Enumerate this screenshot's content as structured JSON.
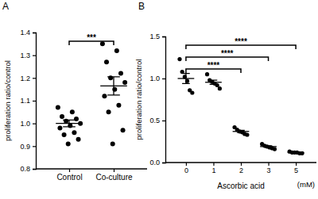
{
  "chart_data": [
    {
      "type": "scatter",
      "title": "A",
      "ylabel": "proliferation ratio/control",
      "categories": [
        "Control",
        "Co-culture"
      ],
      "values": [
        [
          1.07,
          1.05,
          1.03,
          1.02,
          1.01,
          1.0,
          0.99,
          0.98,
          0.96,
          0.95,
          0.93,
          0.91
        ],
        [
          1.35,
          1.32,
          1.27,
          1.22,
          1.2,
          1.18,
          1.15,
          1.12,
          1.08,
          1.05,
          0.97,
          0.91
        ]
      ],
      "means": [
        1.0,
        1.165
      ],
      "errors": [
        0.015,
        0.04
      ],
      "color": "#000000",
      "ylim": [
        0.8,
        1.4
      ],
      "yticks": [
        0.8,
        0.9,
        {
          "value": 1,
          "label": "1.0"
        },
        1.1,
        1.2,
        1.3,
        1.4
      ],
      "annotations": [
        {
          "text": "***",
          "from": 0,
          "to": 1
        }
      ]
    },
    {
      "type": "scatter",
      "title": "B",
      "ylabel": "proliferation ratio/control",
      "xlabel": "Ascorbic acid",
      "categories": [
        "0",
        "1",
        "2",
        "3",
        "5"
      ],
      "values": [
        [
          1.23,
          1.08,
          1.02,
          0.97,
          0.86,
          0.83
        ],
        [
          1.05,
          0.98,
          0.96,
          0.94,
          0.92,
          0.88
        ],
        [
          0.42,
          0.39,
          0.37,
          0.36,
          0.34,
          0.33
        ],
        [
          0.22,
          0.2,
          0.19,
          0.18,
          0.17,
          0.16
        ],
        [
          0.13,
          0.12,
          0.12,
          0.12,
          0.11,
          0.11
        ]
      ],
      "means": [
        1.0,
        0.955,
        0.37,
        0.19,
        0.12
      ],
      "errors": [
        0.06,
        0.025,
        0.013,
        0.009,
        0.003
      ],
      "color": "#000000",
      "ylim": [
        0,
        1.5
      ],
      "yticks": [
        {
          "value": 0,
          "label": "0.0"
        },
        0.5,
        {
          "value": 1,
          "label": "1.0"
        },
        1.5
      ],
      "annotations": [
        {
          "text": "****",
          "from": 0,
          "to": 2
        },
        {
          "text": "****",
          "from": 0,
          "to": 3
        },
        {
          "text": "****",
          "from": 0,
          "to": 4
        },
        {
          "text": "(mM)"
        }
      ]
    }
  ]
}
